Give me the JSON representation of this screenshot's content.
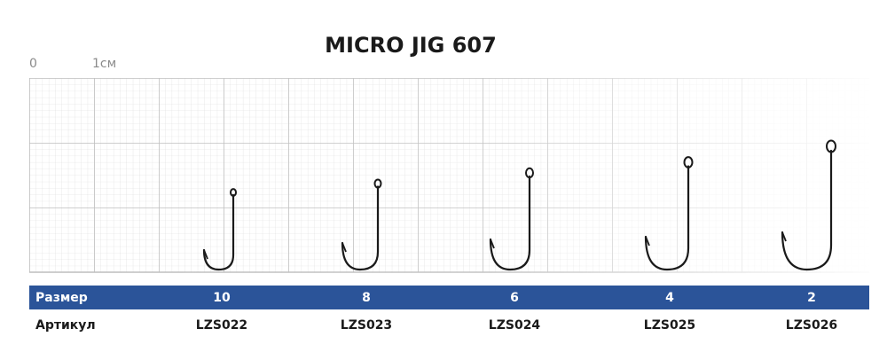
{
  "title": "MICRO JIG 607",
  "scale": {
    "zero": "0",
    "unit": "1см"
  },
  "table": {
    "size_row": {
      "label": "Размер",
      "cells": [
        "10",
        "8",
        "6",
        "4",
        "2"
      ]
    },
    "code_row": {
      "label": "Артикул",
      "cells": [
        "LZS022",
        "LZS023",
        "LZS024",
        "LZS025",
        "LZS026"
      ]
    }
  }
}
